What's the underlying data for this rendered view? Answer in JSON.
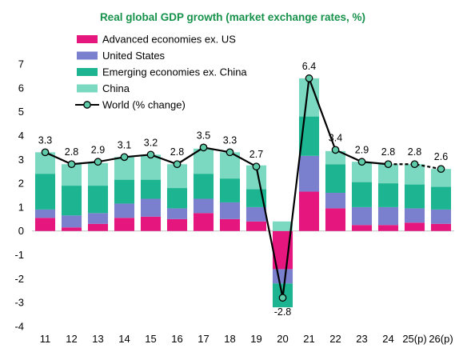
{
  "chart_data": {
    "type": "bar",
    "title": "Real global GDP growth (market exchange rates, %)",
    "categories": [
      "11",
      "12",
      "13",
      "14",
      "15",
      "16",
      "17",
      "18",
      "19",
      "20",
      "21",
      "22",
      "23",
      "24",
      "25(p)",
      "26(p)"
    ],
    "ylim": [
      -4,
      7
    ],
    "yticks": [
      -4,
      -3,
      -2,
      -1,
      0,
      1,
      2,
      3,
      4,
      5,
      6,
      7
    ],
    "grid": false,
    "legend_position": "top-left",
    "series": [
      {
        "name": "Advanced economies ex. US",
        "kind": "stacked-bar",
        "color": "#e5177e",
        "values": [
          0.55,
          0.15,
          0.3,
          0.55,
          0.6,
          0.5,
          0.75,
          0.5,
          0.4,
          -1.6,
          1.65,
          0.95,
          0.25,
          0.25,
          0.35,
          0.3
        ]
      },
      {
        "name": "United States",
        "kind": "stacked-bar",
        "color": "#7a7fce",
        "values": [
          0.35,
          0.5,
          0.45,
          0.6,
          0.75,
          0.45,
          0.6,
          0.7,
          0.6,
          -0.6,
          1.5,
          0.65,
          0.75,
          0.75,
          0.6,
          0.6
        ]
      },
      {
        "name": "Emerging economies ex. China",
        "kind": "stacked-bar",
        "color": "#1db591",
        "values": [
          1.5,
          1.25,
          1.15,
          1.0,
          0.8,
          0.85,
          1.05,
          1.0,
          0.75,
          -1.0,
          1.65,
          1.2,
          1.05,
          1.0,
          1.0,
          0.95
        ]
      },
      {
        "name": "China",
        "kind": "stacked-bar",
        "color": "#7bd8c1",
        "values": [
          0.9,
          0.9,
          0.95,
          0.95,
          1.05,
          1.0,
          1.05,
          1.1,
          1.0,
          0.4,
          1.6,
          0.55,
          0.85,
          0.8,
          0.85,
          0.75
        ]
      },
      {
        "name": "World (% change)",
        "kind": "line",
        "color": "#000000",
        "marker_color": "#5ecaa8",
        "values": [
          3.3,
          2.8,
          2.9,
          3.1,
          3.2,
          2.8,
          3.5,
          3.3,
          2.7,
          -2.8,
          6.4,
          3.4,
          2.9,
          2.8,
          2.8,
          2.6
        ],
        "labels": [
          "3.3",
          "2.8",
          "2.9",
          "3.1",
          "3.2",
          "2.8",
          "3.5",
          "3.3",
          "2.7",
          "-2.8",
          "6.4",
          "3.4",
          "2.9",
          "2.8",
          "2.8",
          "2.6"
        ],
        "dashed_from_index": 13
      }
    ]
  }
}
